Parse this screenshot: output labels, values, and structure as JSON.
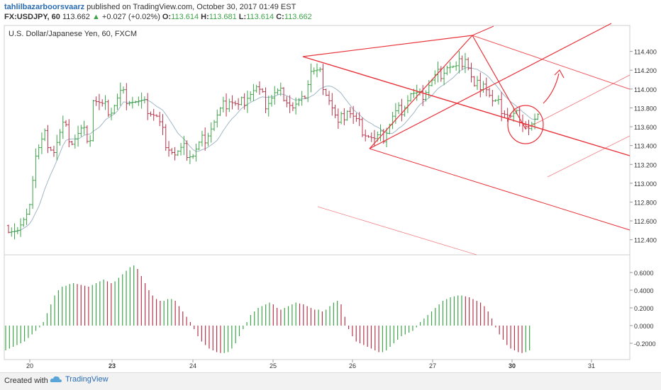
{
  "header": {
    "author": "tahlilbazarboorsvaarz",
    "published_text": "published on TradingView.com, October 30, 2017 01:49 EST",
    "symbol": "FX:USDJPY, 60",
    "last": "113.662",
    "change": "+0.027 (+0.02%)",
    "open_label": "O:",
    "open": "113.614",
    "high_label": "H:",
    "high": "113.681",
    "low_label": "L:",
    "low": "113.614",
    "close_label": "C:",
    "close": "113.662"
  },
  "legend": "U.S. Dollar/Japanese Yen, 60, FXCM",
  "footer": {
    "created_with": "Created with",
    "brand": "TradingView"
  },
  "colors": {
    "up": "#3ea34a",
    "down": "#b7344a",
    "annotation": "#e8323a",
    "ma": "#9fb7c7"
  },
  "chart_data": [
    {
      "type": "ohlc",
      "title": "U.S. Dollar/Japanese Yen, 60, FXCM",
      "ylim": [
        112.3,
        114.6
      ],
      "y_ticks": [
        "114.400",
        "114.200",
        "114.000",
        "113.800",
        "113.600",
        "113.400",
        "113.200",
        "113.000",
        "112.800",
        "112.600",
        "112.400"
      ],
      "x_ticks": [
        "20",
        "23",
        "24",
        "25",
        "26",
        "27",
        "30",
        "31"
      ],
      "close_path": [
        [
          0,
          112.55
        ],
        [
          3,
          112.5
        ],
        [
          6,
          112.6
        ],
        [
          9,
          113.3
        ],
        [
          12,
          113.5
        ],
        [
          15,
          113.35
        ],
        [
          18,
          113.6
        ],
        [
          21,
          113.45
        ],
        [
          24,
          113.55
        ],
        [
          27,
          113.5
        ],
        [
          28,
          113.9
        ],
        [
          31,
          113.8
        ],
        [
          34,
          113.78
        ],
        [
          37,
          113.95
        ],
        [
          40,
          113.9
        ],
        [
          43,
          113.85
        ],
        [
          46,
          113.8
        ],
        [
          49,
          113.7
        ],
        [
          52,
          113.45
        ],
        [
          55,
          113.3
        ],
        [
          58,
          113.35
        ],
        [
          61,
          113.3
        ],
        [
          64,
          113.45
        ],
        [
          67,
          113.6
        ],
        [
          70,
          113.75
        ],
        [
          73,
          113.9
        ],
        [
          76,
          113.8
        ],
        [
          79,
          113.95
        ],
        [
          82,
          114.0
        ],
        [
          85,
          113.85
        ],
        [
          88,
          113.95
        ],
        [
          91,
          113.95
        ],
        [
          94,
          113.8
        ],
        [
          97,
          113.85
        ],
        [
          100,
          114.2
        ],
        [
          103,
          114.15
        ],
        [
          106,
          113.9
        ],
        [
          109,
          113.6
        ],
        [
          112,
          113.8
        ],
        [
          115,
          113.65
        ],
        [
          118,
          113.55
        ],
        [
          121,
          113.45
        ],
        [
          124,
          113.5
        ],
        [
          127,
          113.7
        ],
        [
          130,
          113.8
        ],
        [
          133,
          113.95
        ],
        [
          136,
          113.9
        ],
        [
          139,
          114.05
        ],
        [
          142,
          114.15
        ],
        [
          145,
          114.25
        ],
        [
          148,
          114.2
        ],
        [
          151,
          114.35
        ],
        [
          154,
          114.0
        ],
        [
          157,
          114.1
        ],
        [
          160,
          113.85
        ],
        [
          163,
          113.8
        ],
        [
          166,
          113.7
        ],
        [
          169,
          113.72
        ],
        [
          172,
          113.58
        ],
        [
          175,
          113.66
        ]
      ],
      "oscillator": {
        "ylim": [
          -0.32,
          0.72
        ],
        "y_ticks": [
          "0.6000",
          "0.4000",
          "0.2000",
          "0.0000",
          "-0.2000"
        ],
        "values": [
          -0.28,
          -0.26,
          -0.24,
          -0.22,
          -0.2,
          -0.18,
          -0.14,
          -0.1,
          -0.06,
          -0.02,
          0.04,
          0.14,
          0.24,
          0.34,
          0.4,
          0.44,
          0.45,
          0.47,
          0.48,
          0.47,
          0.46,
          0.45,
          0.44,
          0.46,
          0.48,
          0.5,
          0.52,
          0.5,
          0.48,
          0.5,
          0.54,
          0.58,
          0.62,
          0.66,
          0.68,
          0.64,
          0.56,
          0.48,
          0.4,
          0.34,
          0.3,
          0.28,
          0.28,
          0.3,
          0.3,
          0.28,
          0.22,
          0.16,
          0.1,
          0.04,
          -0.04,
          -0.12,
          -0.18,
          -0.22,
          -0.26,
          -0.28,
          -0.3,
          -0.31,
          -0.31,
          -0.3,
          -0.26,
          -0.2,
          -0.12,
          -0.04,
          0.04,
          0.12,
          0.16,
          0.2,
          0.22,
          0.24,
          0.26,
          0.24,
          0.2,
          0.18,
          0.2,
          0.22,
          0.24,
          0.26,
          0.25,
          0.24,
          0.22,
          0.2,
          0.18,
          0.18,
          0.16,
          0.18,
          0.22,
          0.26,
          0.28,
          0.24,
          0.1,
          -0.04,
          -0.12,
          -0.18,
          -0.2,
          -0.22,
          -0.24,
          -0.26,
          -0.28,
          -0.3,
          -0.3,
          -0.28,
          -0.24,
          -0.2,
          -0.16,
          -0.12,
          -0.1,
          -0.08,
          -0.06,
          -0.02,
          0.04,
          0.08,
          0.12,
          0.16,
          0.2,
          0.24,
          0.28,
          0.3,
          0.32,
          0.33,
          0.34,
          0.34,
          0.33,
          0.32,
          0.3,
          0.28,
          0.26,
          0.22,
          0.16,
          0.08,
          -0.02,
          -0.1,
          -0.16,
          -0.22,
          -0.26,
          -0.28,
          -0.3,
          -0.31,
          -0.3,
          -0.28
        ]
      }
    }
  ]
}
